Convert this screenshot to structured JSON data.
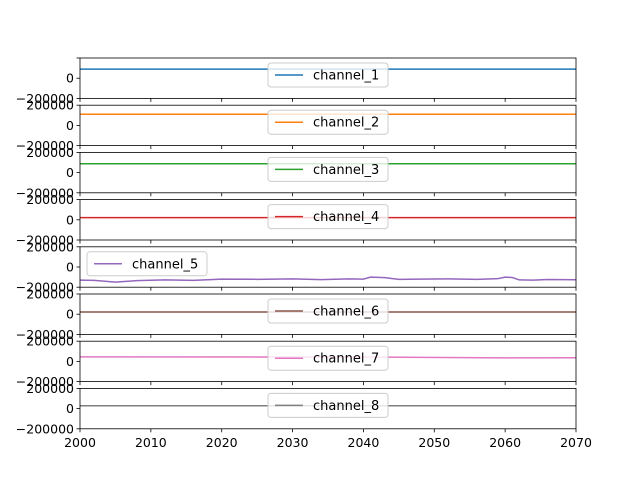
{
  "chart_data": {
    "type": "line",
    "layout": "stacked-subplots",
    "sharex": true,
    "xlim": [
      2000,
      2070
    ],
    "x_ticks": [
      2000,
      2010,
      2020,
      2030,
      2040,
      2050,
      2060,
      2070
    ],
    "x_tick_labels": [
      "2000",
      "2010",
      "2020",
      "2030",
      "2040",
      "2050",
      "2060",
      "2070"
    ],
    "ylim": [
      -200000,
      200000
    ],
    "y_ticks": [
      -200000,
      0,
      200000
    ],
    "y_tick_labels": [
      "−200000",
      "0",
      "200000"
    ],
    "grid": false,
    "series": [
      {
        "name": "channel_1",
        "color": "#1f77b4",
        "legend": "top-center",
        "points": [
          [
            2000,
            90000
          ],
          [
            2070,
            90000
          ]
        ]
      },
      {
        "name": "channel_2",
        "color": "#ff7f0e",
        "legend": "top-center",
        "points": [
          [
            2000,
            110000
          ],
          [
            2070,
            110000
          ]
        ]
      },
      {
        "name": "channel_3",
        "color": "#2ca02c",
        "legend": "top-center",
        "points": [
          [
            2000,
            88000
          ],
          [
            2070,
            88000
          ]
        ]
      },
      {
        "name": "channel_4",
        "color": "#d62728",
        "legend": "top-center",
        "points": [
          [
            2000,
            22000
          ],
          [
            2070,
            22000
          ]
        ]
      },
      {
        "name": "channel_5",
        "color": "#9467bd",
        "legend": "top-left",
        "points": [
          [
            2000,
            -130000
          ],
          [
            2002,
            -132000
          ],
          [
            2005,
            -150000
          ],
          [
            2008,
            -135000
          ],
          [
            2012,
            -128000
          ],
          [
            2016,
            -132000
          ],
          [
            2020,
            -120000
          ],
          [
            2025,
            -122000
          ],
          [
            2030,
            -118000
          ],
          [
            2034,
            -125000
          ],
          [
            2038,
            -118000
          ],
          [
            2040,
            -120000
          ],
          [
            2041,
            -100000
          ],
          [
            2043,
            -105000
          ],
          [
            2045,
            -122000
          ],
          [
            2048,
            -120000
          ],
          [
            2052,
            -118000
          ],
          [
            2056,
            -122000
          ],
          [
            2059,
            -115000
          ],
          [
            2060,
            -100000
          ],
          [
            2061,
            -104000
          ],
          [
            2062,
            -128000
          ],
          [
            2064,
            -130000
          ],
          [
            2066,
            -124000
          ],
          [
            2070,
            -126000
          ]
        ]
      },
      {
        "name": "channel_6",
        "color": "#8c564b",
        "legend": "top-center",
        "points": [
          [
            2000,
            22000
          ],
          [
            2070,
            22000
          ]
        ]
      },
      {
        "name": "channel_7",
        "color": "#e377c2",
        "legend": "top-center",
        "points": [
          [
            2000,
            45000
          ],
          [
            2040,
            43000
          ],
          [
            2060,
            35000
          ],
          [
            2070,
            36000
          ]
        ]
      },
      {
        "name": "channel_8",
        "color": "#7f7f7f",
        "legend": "top-center",
        "points": [
          [
            2000,
            28000
          ],
          [
            2070,
            28000
          ]
        ]
      }
    ]
  }
}
